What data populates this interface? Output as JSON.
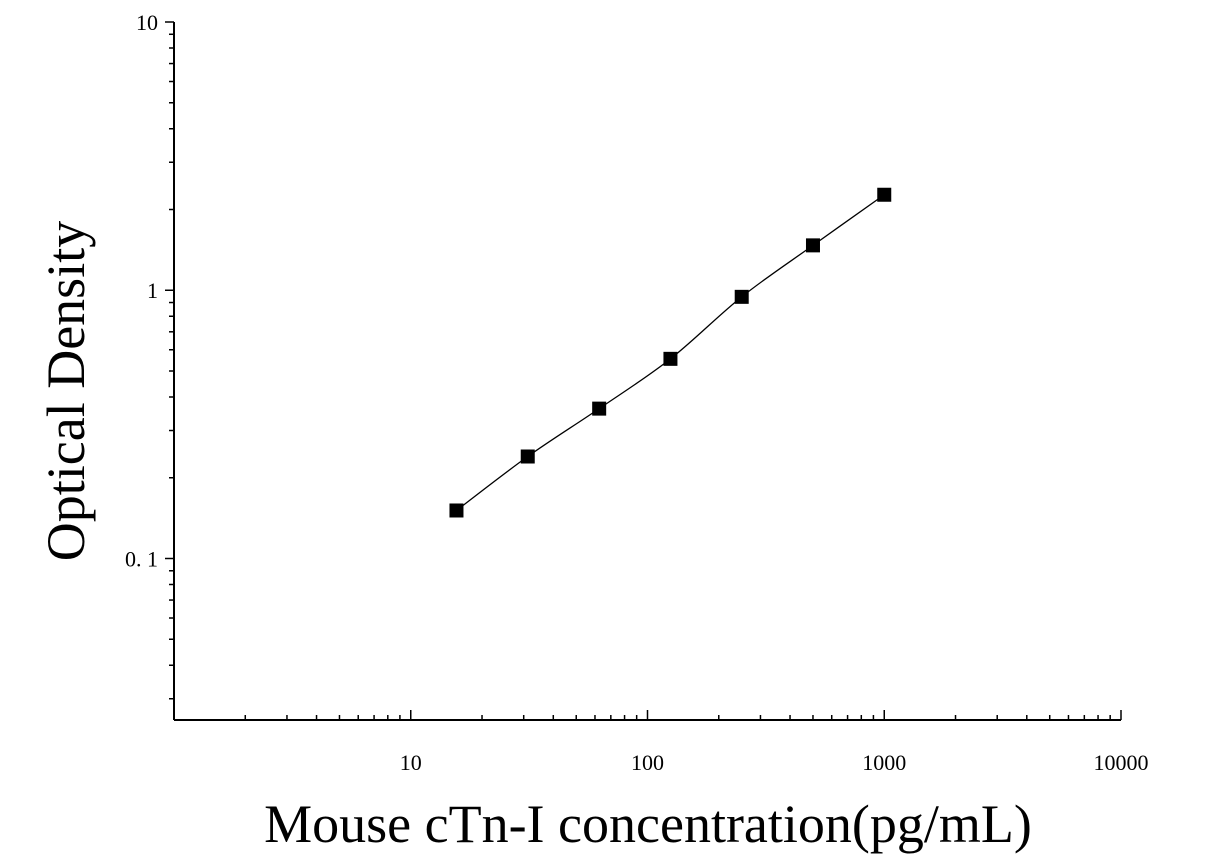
{
  "chart_data": {
    "type": "scatter",
    "xlabel": "Mouse cTn-I concentration(pg/mL)",
    "ylabel": "Optical Density",
    "x_scale": "log",
    "y_scale": "log",
    "xlim": [
      1,
      10000
    ],
    "ylim": [
      0.025,
      10
    ],
    "x_ticks": [
      {
        "value": 10,
        "label": "10"
      },
      {
        "value": 100,
        "label": "100"
      },
      {
        "value": 1000,
        "label": "1000"
      },
      {
        "value": 10000,
        "label": "10000"
      }
    ],
    "y_ticks": [
      {
        "value": 0.1,
        "label": "0. 1"
      },
      {
        "value": 1,
        "label": "1"
      },
      {
        "value": 10,
        "label": "10"
      }
    ],
    "grid": false,
    "marker": "square",
    "fit_curve": true,
    "series": [
      {
        "points": [
          {
            "x": 15.6,
            "y": 0.151
          },
          {
            "x": 31.2,
            "y": 0.24
          },
          {
            "x": 62.5,
            "y": 0.362
          },
          {
            "x": 125,
            "y": 0.555
          },
          {
            "x": 250,
            "y": 0.945
          },
          {
            "x": 500,
            "y": 1.47
          },
          {
            "x": 1000,
            "y": 2.27
          }
        ]
      }
    ],
    "colors": {
      "axis": "#000000",
      "marker": "#000000",
      "curve": "#000000"
    }
  }
}
